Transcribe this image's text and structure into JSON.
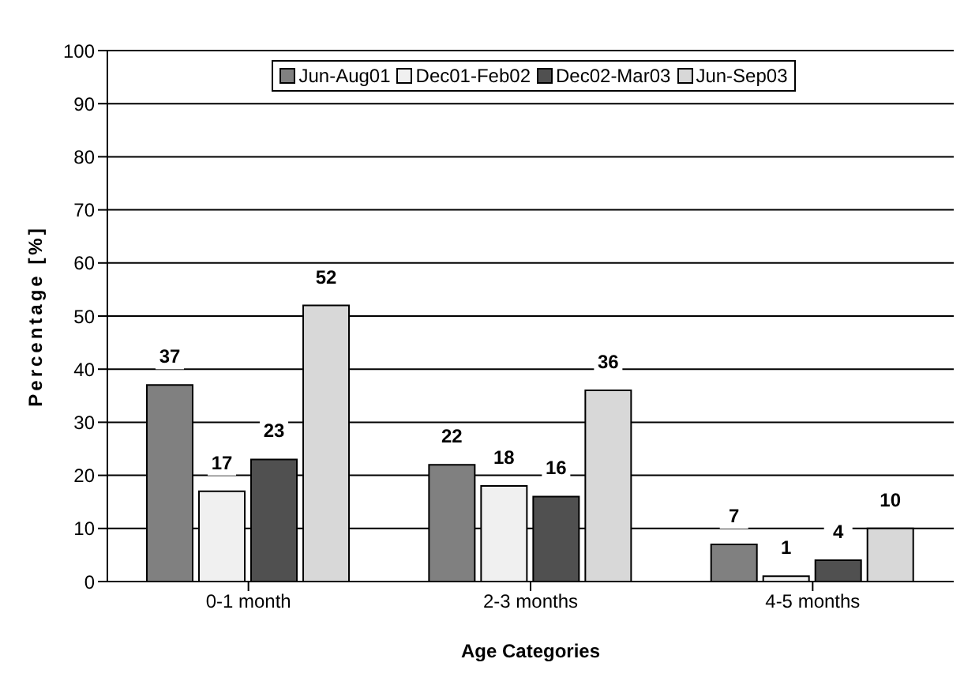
{
  "chart_data": {
    "type": "bar",
    "xlabel": "Age Categories",
    "ylabel": "Percentage [%]",
    "categories": [
      "0-1 month",
      "2-3 months",
      "4-5 months"
    ],
    "series": [
      {
        "name": "Jun-Aug01",
        "color": "#808080",
        "values": [
          37,
          22,
          7
        ]
      },
      {
        "name": "Dec01-Feb02",
        "color": "#f0f0f0",
        "values": [
          17,
          18,
          1
        ]
      },
      {
        "name": "Dec02-Mar03",
        "color": "#505050",
        "values": [
          23,
          16,
          4
        ]
      },
      {
        "name": "Jun-Sep03",
        "color": "#d8d8d8",
        "values": [
          52,
          36,
          10
        ]
      }
    ],
    "ylim": [
      0,
      100
    ],
    "yticks": [
      0,
      10,
      20,
      30,
      40,
      50,
      60,
      70,
      80,
      90,
      100
    ],
    "grid": "y",
    "legend": "top",
    "data_labels": true
  }
}
